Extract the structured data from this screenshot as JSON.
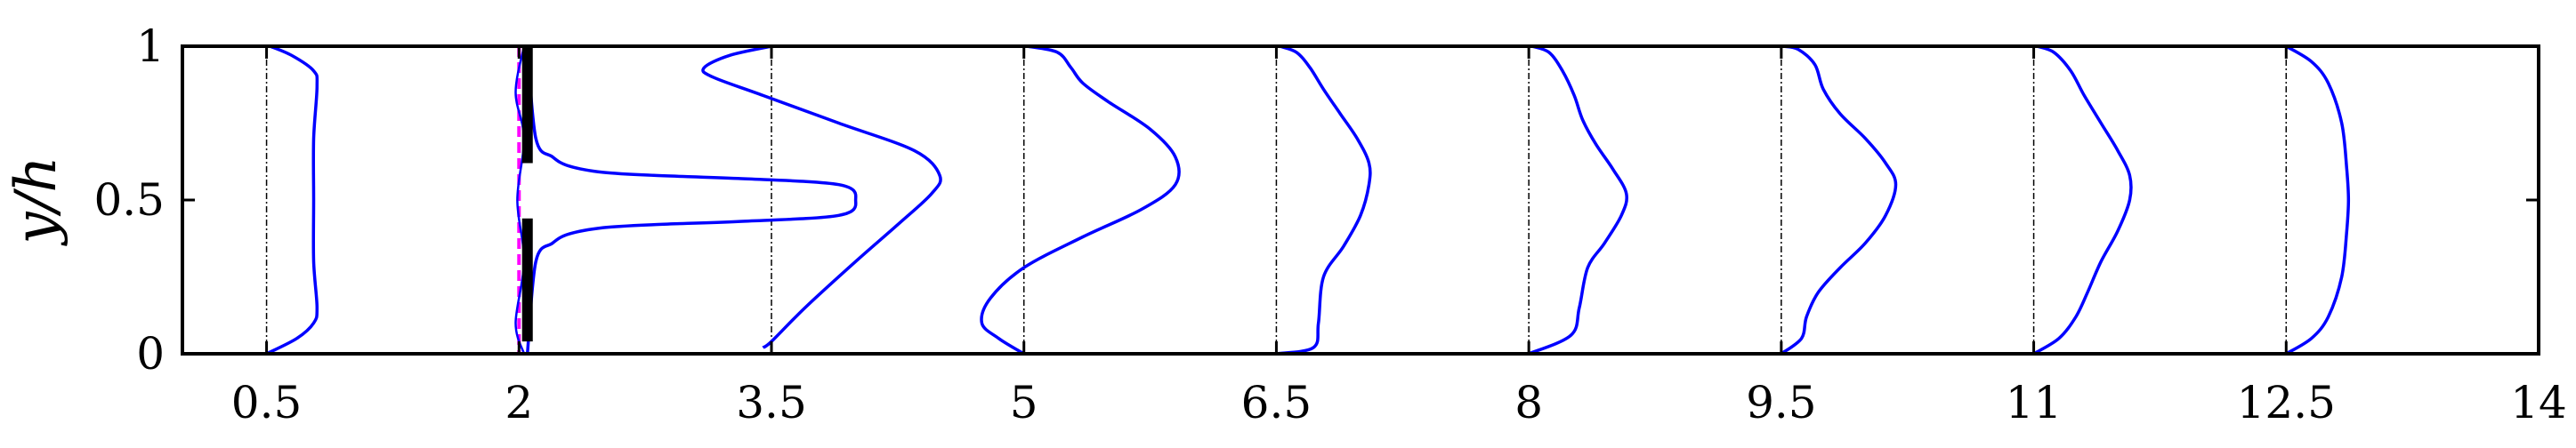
{
  "chart_data": {
    "type": "line",
    "ylabel": "y/h",
    "xlabel": "",
    "xlim": [
      0,
      14
    ],
    "ylim": [
      0,
      1
    ],
    "x_ticks": [
      0.5,
      2,
      3.5,
      5,
      6.5,
      8,
      9.5,
      11,
      12.5,
      14
    ],
    "x_tick_labels": [
      "0.5",
      "2",
      "3.5",
      "5",
      "6.5",
      "8",
      "9.5",
      "11",
      "12.5",
      "14"
    ],
    "y_ticks": [
      0,
      0.5,
      1
    ],
    "y_tick_labels": [
      "0",
      "0.5",
      "1"
    ],
    "grid": false,
    "colors": {
      "profile": "#0000ff",
      "reference_line": "#000000",
      "inlet_line": "#ff00ff",
      "wall": "#000000",
      "axes": "#000000"
    },
    "plate": {
      "x": 2.05,
      "segments": [
        [
          0.04,
          0.44
        ],
        [
          0.62,
          1.0
        ]
      ]
    },
    "inlet_profile": {
      "x_ref": 2,
      "points": [
        [
          2.03,
          0.0
        ],
        [
          1.98,
          0.1
        ],
        [
          2.03,
          0.3
        ],
        [
          1.99,
          0.5
        ],
        [
          2.03,
          0.7
        ],
        [
          1.98,
          0.85
        ],
        [
          2.03,
          1.0
        ]
      ]
    },
    "series": [
      {
        "x_ref": 0.5,
        "points": [
          [
            0.5,
            0.0
          ],
          [
            0.68,
            0.05
          ],
          [
            0.78,
            0.1
          ],
          [
            0.8,
            0.15
          ],
          [
            0.78,
            0.3
          ],
          [
            0.78,
            0.5
          ],
          [
            0.78,
            0.7
          ],
          [
            0.8,
            0.87
          ],
          [
            0.78,
            0.92
          ],
          [
            0.65,
            0.97
          ],
          [
            0.52,
            1.0
          ]
        ]
      },
      {
        "x_ref": 2,
        "points": [
          [
            2.05,
            0.0
          ],
          [
            2.1,
            0.3
          ],
          [
            2.2,
            0.36
          ],
          [
            2.3,
            0.39
          ],
          [
            2.5,
            0.41
          ],
          [
            2.8,
            0.42
          ],
          [
            3.3,
            0.43
          ],
          [
            3.9,
            0.45
          ],
          [
            4.0,
            0.5
          ],
          [
            3.9,
            0.55
          ],
          [
            3.3,
            0.57
          ],
          [
            2.8,
            0.58
          ],
          [
            2.5,
            0.59
          ],
          [
            2.3,
            0.61
          ],
          [
            2.2,
            0.64
          ],
          [
            2.1,
            0.7
          ],
          [
            2.05,
            1.0
          ]
        ]
      },
      {
        "x_ref": 3.5,
        "points": [
          [
            3.45,
            0.02
          ],
          [
            3.5,
            0.04
          ],
          [
            3.7,
            0.15
          ],
          [
            4.0,
            0.3
          ],
          [
            4.25,
            0.42
          ],
          [
            4.45,
            0.52
          ],
          [
            4.5,
            0.58
          ],
          [
            4.35,
            0.66
          ],
          [
            3.9,
            0.75
          ],
          [
            3.45,
            0.84
          ],
          [
            3.15,
            0.9
          ],
          [
            3.1,
            0.93
          ],
          [
            3.25,
            0.97
          ],
          [
            3.5,
            1.0
          ]
        ]
      },
      {
        "x_ref": 5,
        "points": [
          [
            5.0,
            0.0
          ],
          [
            4.85,
            0.05
          ],
          [
            4.75,
            0.1
          ],
          [
            4.8,
            0.18
          ],
          [
            5.0,
            0.28
          ],
          [
            5.35,
            0.38
          ],
          [
            5.7,
            0.47
          ],
          [
            5.9,
            0.55
          ],
          [
            5.9,
            0.64
          ],
          [
            5.75,
            0.73
          ],
          [
            5.5,
            0.82
          ],
          [
            5.35,
            0.88
          ],
          [
            5.28,
            0.93
          ],
          [
            5.2,
            0.98
          ],
          [
            5.02,
            1.0
          ]
        ]
      },
      {
        "x_ref": 6.5,
        "points": [
          [
            6.5,
            0.0
          ],
          [
            6.72,
            0.02
          ],
          [
            6.75,
            0.1
          ],
          [
            6.78,
            0.25
          ],
          [
            6.9,
            0.35
          ],
          [
            7.0,
            0.45
          ],
          [
            7.05,
            0.55
          ],
          [
            7.05,
            0.62
          ],
          [
            6.98,
            0.7
          ],
          [
            6.88,
            0.78
          ],
          [
            6.78,
            0.86
          ],
          [
            6.7,
            0.93
          ],
          [
            6.62,
            0.98
          ],
          [
            6.52,
            1.0
          ]
        ]
      },
      {
        "x_ref": 8,
        "points": [
          [
            8.0,
            0.0
          ],
          [
            8.25,
            0.06
          ],
          [
            8.3,
            0.15
          ],
          [
            8.35,
            0.28
          ],
          [
            8.45,
            0.36
          ],
          [
            8.55,
            0.45
          ],
          [
            8.58,
            0.52
          ],
          [
            8.5,
            0.6
          ],
          [
            8.4,
            0.68
          ],
          [
            8.32,
            0.76
          ],
          [
            8.27,
            0.84
          ],
          [
            8.2,
            0.92
          ],
          [
            8.12,
            0.98
          ],
          [
            8.02,
            1.0
          ]
        ]
      },
      {
        "x_ref": 9.5,
        "points": [
          [
            9.5,
            0.0
          ],
          [
            9.62,
            0.05
          ],
          [
            9.65,
            0.12
          ],
          [
            9.72,
            0.2
          ],
          [
            9.85,
            0.28
          ],
          [
            10.0,
            0.36
          ],
          [
            10.12,
            0.45
          ],
          [
            10.18,
            0.55
          ],
          [
            10.12,
            0.62
          ],
          [
            10.0,
            0.7
          ],
          [
            9.85,
            0.78
          ],
          [
            9.75,
            0.86
          ],
          [
            9.7,
            0.94
          ],
          [
            9.6,
            0.99
          ],
          [
            9.51,
            1.0
          ]
        ]
      },
      {
        "x_ref": 11,
        "points": [
          [
            11.0,
            0.0
          ],
          [
            11.15,
            0.05
          ],
          [
            11.25,
            0.12
          ],
          [
            11.32,
            0.2
          ],
          [
            11.4,
            0.3
          ],
          [
            11.5,
            0.4
          ],
          [
            11.57,
            0.5
          ],
          [
            11.57,
            0.58
          ],
          [
            11.5,
            0.66
          ],
          [
            11.4,
            0.75
          ],
          [
            11.3,
            0.84
          ],
          [
            11.22,
            0.92
          ],
          [
            11.12,
            0.98
          ],
          [
            11.02,
            1.0
          ]
        ]
      },
      {
        "x_ref": 12.5,
        "points": [
          [
            12.5,
            0.0
          ],
          [
            12.65,
            0.05
          ],
          [
            12.75,
            0.12
          ],
          [
            12.83,
            0.25
          ],
          [
            12.86,
            0.4
          ],
          [
            12.87,
            0.5
          ],
          [
            12.86,
            0.6
          ],
          [
            12.83,
            0.75
          ],
          [
            12.75,
            0.88
          ],
          [
            12.65,
            0.95
          ],
          [
            12.5,
            1.0
          ]
        ]
      }
    ]
  }
}
